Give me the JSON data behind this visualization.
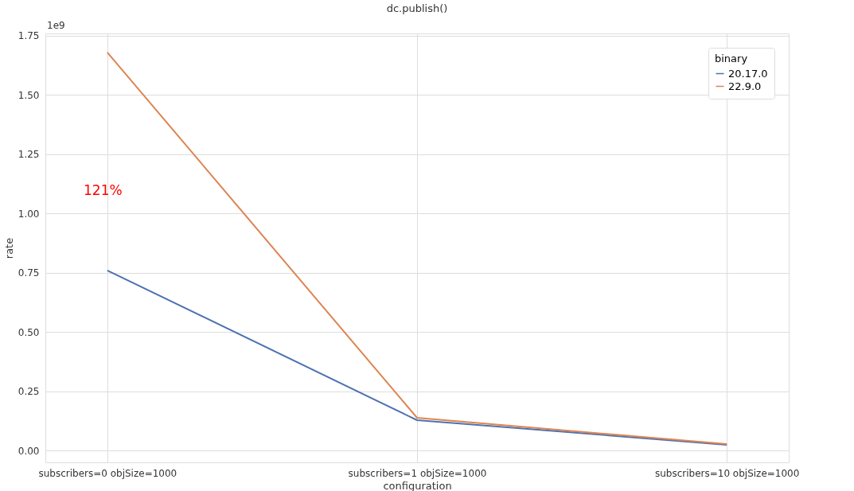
{
  "chart_data": {
    "type": "line",
    "title": "dc.publish()",
    "xlabel": "configuration",
    "ylabel": "rate",
    "legend_title": "binary",
    "categories": [
      "subscribers=0 objSize=1000",
      "subscribers=1 objSize=1000",
      "subscribers=10 objSize=1000"
    ],
    "series": [
      {
        "name": "20.17.0",
        "color": "#4c72b0",
        "values": [
          0.76,
          0.128,
          0.024
        ]
      },
      {
        "name": "22.9.0",
        "color": "#dd8452",
        "values": [
          1.68,
          0.138,
          0.027
        ]
      }
    ],
    "ylim": [
      -0.05,
      1.76
    ],
    "yticks": [
      {
        "value": 0,
        "label": "0.00"
      },
      0.25,
      {
        "value": 0.5,
        "label": "0.50"
      },
      0.75,
      {
        "value": 1,
        "label": "1.00"
      },
      1.25,
      {
        "value": 1.5,
        "label": "1.50"
      },
      1.75
    ],
    "annotations": [
      "1e9",
      "121%"
    ],
    "grid": true,
    "legend": "top right",
    "marker": "none",
    "line_style": "solid"
  }
}
